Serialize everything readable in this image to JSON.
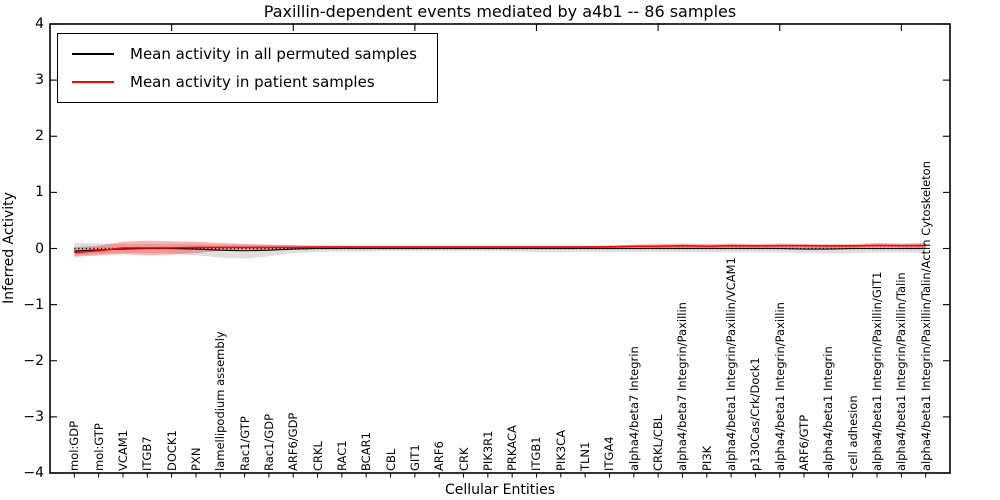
{
  "title": "Paxillin-dependent events mediated by a4b1 -- 86 samples",
  "legend": {
    "entries": [
      {
        "label": "Mean activity in all permuted samples",
        "color": "#000000"
      },
      {
        "label": "Mean activity in patient samples",
        "color": "#ff0000"
      }
    ]
  },
  "chart_data": {
    "type": "line",
    "title": "Paxillin-dependent events mediated by a4b1 -- 86 samples",
    "xlabel": "Cellular Entities",
    "ylabel": "Inferred Activity",
    "ylim": [
      -4,
      4
    ],
    "yticks": [
      4,
      3,
      2,
      1,
      0,
      -1,
      -2,
      -3,
      -4
    ],
    "top_tick_every": 5,
    "grid": false,
    "legend_position": "upper left",
    "zero_line": true,
    "categories": [
      "mol:GDP",
      "mol:GTP",
      "VCAM1",
      "ITGB7",
      "DOCK1",
      "PXN",
      "lamellipodium assembly",
      "Rac1/GTP",
      "Rac1/GDP",
      "ARF6/GDP",
      "CRKL",
      "RAC1",
      "BCAR1",
      "CBL",
      "GIT1",
      "ARF6",
      "CRK",
      "PIK3R1",
      "PRKACA",
      "ITGB1",
      "PIK3CA",
      "TLN1",
      "ITGA4",
      "alpha4/beta7 Integrin",
      "CRKL/CBL",
      "alpha4/beta7 Integrin/Paxillin",
      "PI3K",
      "alpha4/beta1 Integrin/Paxillin/VCAM1",
      "p130Cas/Crk/Dock1",
      "alpha4/beta1 Integrin/Paxillin",
      "ARF6/GTP",
      "alpha4/beta1 Integrin",
      "cell adhesion",
      "alpha4/beta1 Integrin/Paxillin/GIT1",
      "alpha4/beta1 Integrin/Paxillin/Talin",
      "alpha4/beta1 Integrin/Paxillin/Talin/Actin Cytoskeleton"
    ],
    "series": [
      {
        "name": "Mean activity in all permuted samples",
        "color": "#000000",
        "values": [
          -0.045,
          -0.025,
          -0.01,
          0,
          0,
          -0.01,
          -0.03,
          -0.04,
          -0.03,
          -0.01,
          0,
          0,
          0,
          0,
          0,
          0,
          0,
          0,
          0,
          0,
          0,
          0,
          0,
          0,
          0,
          0,
          0,
          0,
          0,
          0,
          -0.01,
          -0.01,
          0,
          0,
          0,
          0
        ]
      },
      {
        "name": "Mean activity in patient samples",
        "color": "#ff0000",
        "values": [
          -0.07,
          -0.04,
          0.01,
          0.01,
          0.01,
          0.02,
          0.02,
          0.02,
          0.02,
          0.02,
          0.025,
          0.025,
          0.025,
          0.025,
          0.025,
          0.025,
          0.025,
          0.025,
          0.025,
          0.025,
          0.025,
          0.025,
          0.03,
          0.04,
          0.04,
          0.05,
          0.04,
          0.05,
          0.045,
          0.05,
          0.05,
          0.045,
          0.045,
          0.055,
          0.05,
          0.053
        ]
      }
    ],
    "bands": [
      {
        "name": "permuted-samples-range",
        "color": "#000000",
        "opacity": 0.13,
        "upper": [
          0.1,
          0.09,
          0.08,
          0.08,
          0.08,
          0.08,
          0.07,
          0.07,
          0.07,
          0.06,
          0.05,
          0.05,
          0.05,
          0.05,
          0.05,
          0.05,
          0.05,
          0.05,
          0.05,
          0.05,
          0.05,
          0.05,
          0.05,
          0.055,
          0.055,
          0.06,
          0.06,
          0.06,
          0.06,
          0.06,
          0.06,
          0.06,
          0.06,
          0.065,
          0.07,
          0.08
        ],
        "lower": [
          -0.13,
          -0.1,
          -0.08,
          -0.08,
          -0.09,
          -0.12,
          -0.16,
          -0.18,
          -0.14,
          -0.08,
          -0.06,
          -0.055,
          -0.055,
          -0.05,
          -0.05,
          -0.05,
          -0.05,
          -0.05,
          -0.055,
          -0.06,
          -0.06,
          -0.06,
          -0.06,
          -0.06,
          -0.06,
          -0.065,
          -0.065,
          -0.07,
          -0.07,
          -0.07,
          -0.08,
          -0.09,
          -0.085,
          -0.07,
          -0.07,
          -0.075
        ]
      },
      {
        "name": "patient-samples-range",
        "color": "#ff0000",
        "opacity": 0.3,
        "upper": [
          0.02,
          0.05,
          0.12,
          0.14,
          0.13,
          0.12,
          0.1,
          0.08,
          0.07,
          0.06,
          0.05,
          0.05,
          0.045,
          0.045,
          0.045,
          0.045,
          0.045,
          0.045,
          0.045,
          0.045,
          0.045,
          0.045,
          0.05,
          0.07,
          0.08,
          0.09,
          0.08,
          0.09,
          0.08,
          0.09,
          0.08,
          0.075,
          0.08,
          0.1,
          0.09,
          0.1
        ],
        "lower": [
          -0.15,
          -0.12,
          -0.1,
          -0.12,
          -0.11,
          -0.08,
          -0.04,
          -0.03,
          -0.03,
          -0.02,
          -0.01,
          -0.01,
          -0.005,
          -0.005,
          0,
          0,
          0,
          0,
          0,
          0,
          0,
          0,
          0,
          0.005,
          0.01,
          0.01,
          0.01,
          0.015,
          0.01,
          0.015,
          0.015,
          0.015,
          0.015,
          0.02,
          0.02,
          0.01
        ]
      }
    ]
  }
}
